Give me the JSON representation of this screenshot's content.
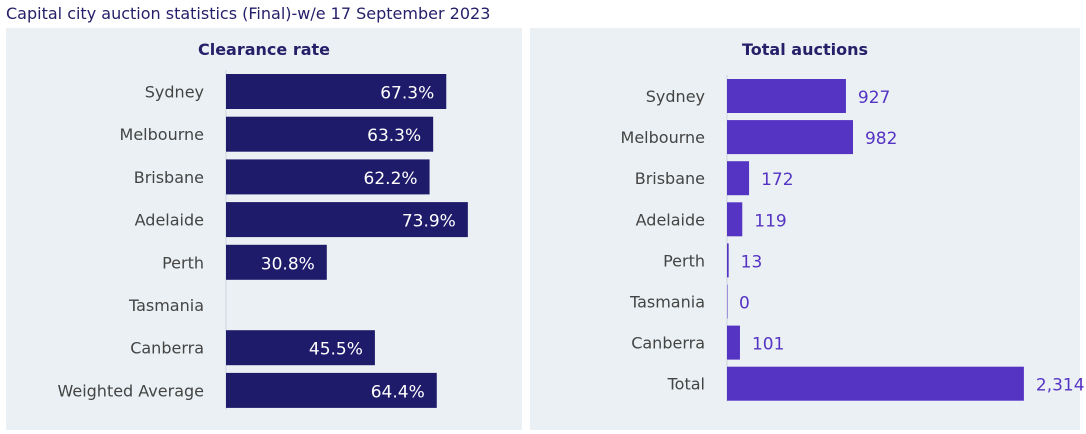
{
  "title": "Capital city auction statistics (Final)-w/e 17 September 2023",
  "colors": {
    "title": "#25206a",
    "panel_bg": "#eaf0f3",
    "clearance_bar": "#1f1b6b",
    "auction_bar": "#5533c3",
    "auction_label": "#5533c3",
    "category_text": "#444444",
    "axis_line": "#cfd6dc"
  },
  "chart_data": [
    {
      "type": "bar",
      "orientation": "horizontal",
      "title": "Clearance rate",
      "categories": [
        "Sydney",
        "Melbourne",
        "Brisbane",
        "Adelaide",
        "Perth",
        "Tasmania",
        "Canberra",
        "Weighted Average"
      ],
      "values": [
        67.3,
        63.3,
        62.2,
        73.9,
        30.8,
        null,
        45.5,
        64.4
      ],
      "value_labels": [
        "67.3%",
        "63.3%",
        "62.2%",
        "73.9%",
        "30.8%",
        "",
        "45.5%",
        "64.4%"
      ],
      "xlim": [
        0,
        88
      ],
      "label_position": "inside-end",
      "grid": false,
      "legend": "none"
    },
    {
      "type": "bar",
      "orientation": "horizontal",
      "title": "Total auctions",
      "categories": [
        "Sydney",
        "Melbourne",
        "Brisbane",
        "Adelaide",
        "Perth",
        "Tasmania",
        "Canberra",
        "Total"
      ],
      "values": [
        927,
        982,
        172,
        119,
        13,
        0,
        101,
        2314
      ],
      "value_labels": [
        "927",
        "982",
        "172",
        "119",
        "13",
        "0",
        "101",
        "2,314"
      ],
      "xlim": [
        0,
        2650
      ],
      "label_position": "outside-end",
      "grid": false,
      "legend": "none"
    }
  ]
}
